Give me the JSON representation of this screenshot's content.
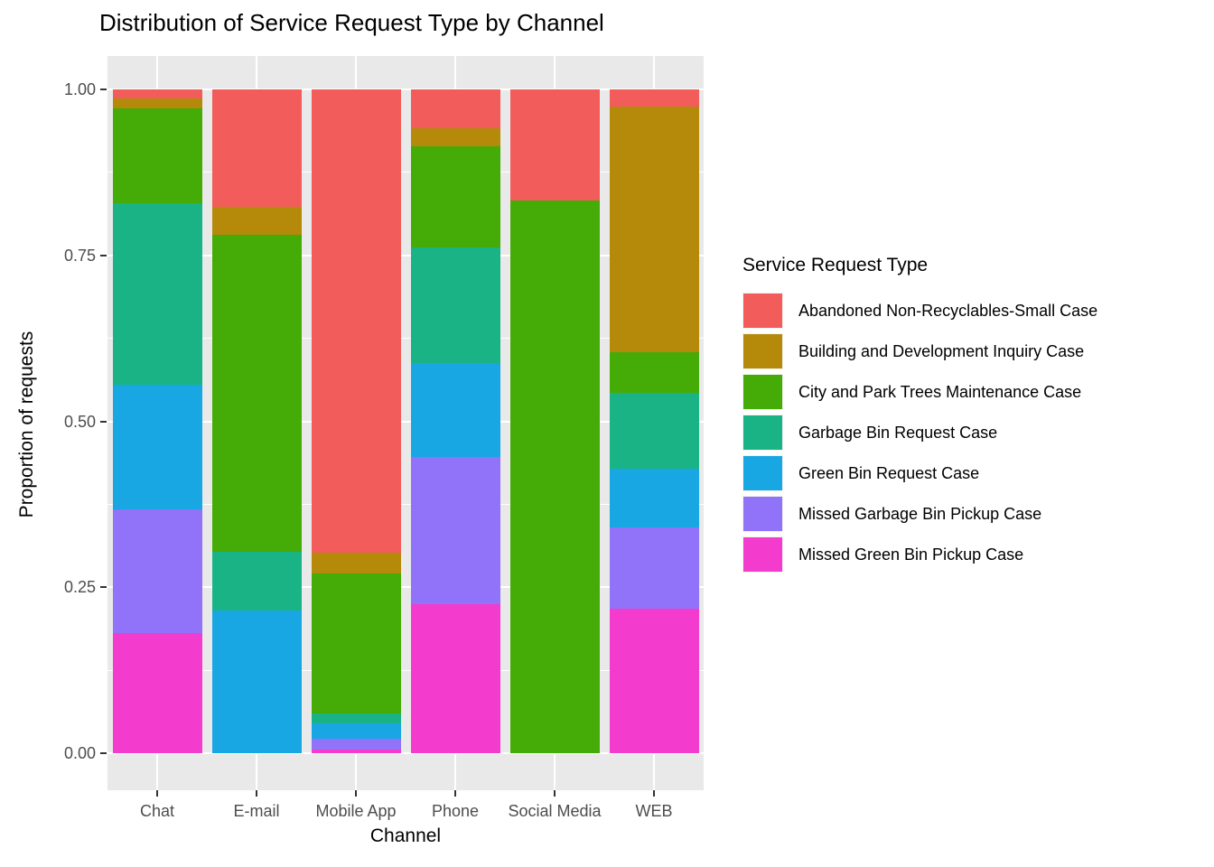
{
  "title": "Distribution of Service Request Type by Channel",
  "chart_data": {
    "type": "bar",
    "stacked": true,
    "normalized": true,
    "title": "Distribution of Service Request Type by Channel",
    "xlabel": "Channel",
    "ylabel": "Proportion of requests",
    "categories": [
      "Chat",
      "E-mail",
      "Mobile App",
      "Phone",
      "Social Media",
      "WEB"
    ],
    "y_ticks": [
      {
        "label": "0.00",
        "value": 0.0
      },
      {
        "label": "0.25",
        "value": 0.25
      },
      {
        "label": "0.50",
        "value": 0.5
      },
      {
        "label": "0.75",
        "value": 0.75
      },
      {
        "label": "1.00",
        "value": 1.0
      }
    ],
    "y_minor_ticks": [
      0.125,
      0.375,
      0.625,
      0.875
    ],
    "ylim": [
      0,
      1
    ],
    "grid": true,
    "panel_background": "#E9E9E9",
    "gridline_color": "#ffffff",
    "axis_text_color": "#4D4D4D",
    "legend_title": "Service Request Type",
    "legend_position": "right",
    "series": [
      {
        "name": "Abandoned Non-Recyclables-Small Case",
        "color": "#F25C5A",
        "values": [
          0.013,
          0.177,
          0.698,
          0.059,
          0.167,
          0.026
        ]
      },
      {
        "name": "Building and Development Inquiry Case",
        "color": "#B5890A",
        "values": [
          0.015,
          0.042,
          0.031,
          0.027,
          0.0,
          0.37
        ]
      },
      {
        "name": "City and Park Trees Maintenance Case",
        "color": "#45AB07",
        "values": [
          0.143,
          0.478,
          0.211,
          0.152,
          0.833,
          0.061
        ]
      },
      {
        "name": "Garbage Bin Request Case",
        "color": "#1AB385",
        "values": [
          0.274,
          0.088,
          0.015,
          0.174,
          0.0,
          0.115
        ]
      },
      {
        "name": "Green Bin Request Case",
        "color": "#18A7E3",
        "values": [
          0.187,
          0.215,
          0.023,
          0.142,
          0.0,
          0.088
        ]
      },
      {
        "name": "Missed Garbage Bin Pickup Case",
        "color": "#9173FA",
        "values": [
          0.187,
          0.0,
          0.016,
          0.221,
          0.0,
          0.122
        ]
      },
      {
        "name": "Missed Green Bin Pickup Case",
        "color": "#F33CCE",
        "values": [
          0.181,
          0.0,
          0.006,
          0.225,
          0.0,
          0.218
        ]
      }
    ]
  }
}
